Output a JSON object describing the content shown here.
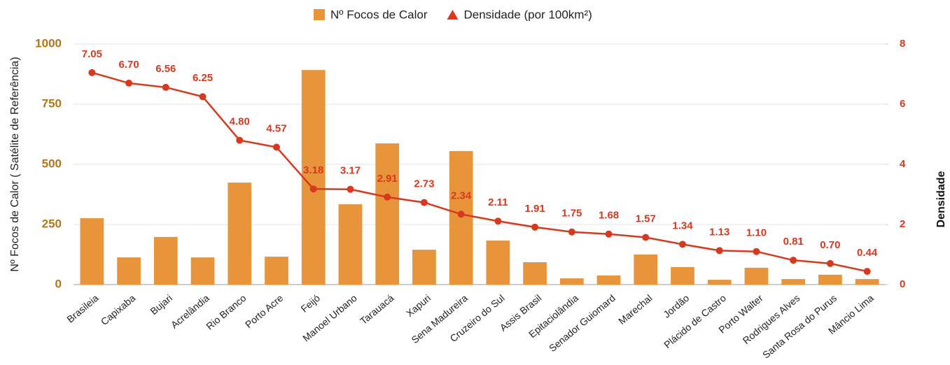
{
  "chart_data": {
    "type": "bar_line",
    "categories": [
      "Brasileia",
      "Capixaba",
      "Bujari",
      "Acrelândia",
      "Rio Branco",
      "Porto Acre",
      "Feijó",
      "Manoel Urbano",
      "Tarauacá",
      "Xapuri",
      "Sena Madureira",
      "Cruzeiro do Sul",
      "Assis Brasil",
      "Epitaciolândia",
      "Senador Guiomard",
      "Marechal",
      "Jordão",
      "Plácido de Castro",
      "Porto Walter",
      "Rodrigues Alves",
      "Santa Rosa do Purus",
      "Mâncio Lima"
    ],
    "series": [
      {
        "name": "Nº Focos de Calor",
        "type": "bar",
        "color": "#e8943a",
        "values": [
          276,
          113,
          198,
          113,
          424,
          116,
          892,
          334,
          587,
          145,
          555,
          183,
          93,
          26,
          38,
          125,
          73,
          20,
          70,
          23,
          41,
          23
        ]
      },
      {
        "name": "Densidade (por 100km²)",
        "type": "line",
        "axis": "y2",
        "color": "#d9381e",
        "values": [
          7.05,
          6.7,
          6.56,
          6.25,
          4.8,
          4.57,
          3.18,
          3.17,
          2.91,
          2.73,
          2.34,
          2.11,
          1.91,
          1.75,
          1.68,
          1.57,
          1.34,
          1.13,
          1.1,
          0.81,
          0.7,
          0.44
        ],
        "value_labels": [
          "7.05",
          "6.70",
          "6.56",
          "6.25",
          "4.80",
          "4.57",
          "3.18",
          "3.17",
          "2.91",
          "2.73",
          "2.34",
          "2.11",
          "1.91",
          "1.75",
          "1.68",
          "1.57",
          "1.34",
          "1.13",
          "1.10",
          "0.81",
          "0.70",
          "0.44"
        ]
      }
    ],
    "ylabel": "Nº Focos de Calor ( Satélite de Referência)",
    "y2label": "Densidade",
    "ylim": [
      0,
      1000
    ],
    "yticks": [
      0,
      250,
      500,
      750,
      1000
    ],
    "y2lim": [
      0,
      8
    ],
    "y2ticks": [
      0,
      2,
      4,
      6,
      8
    ],
    "grid": true,
    "legend": "top"
  }
}
